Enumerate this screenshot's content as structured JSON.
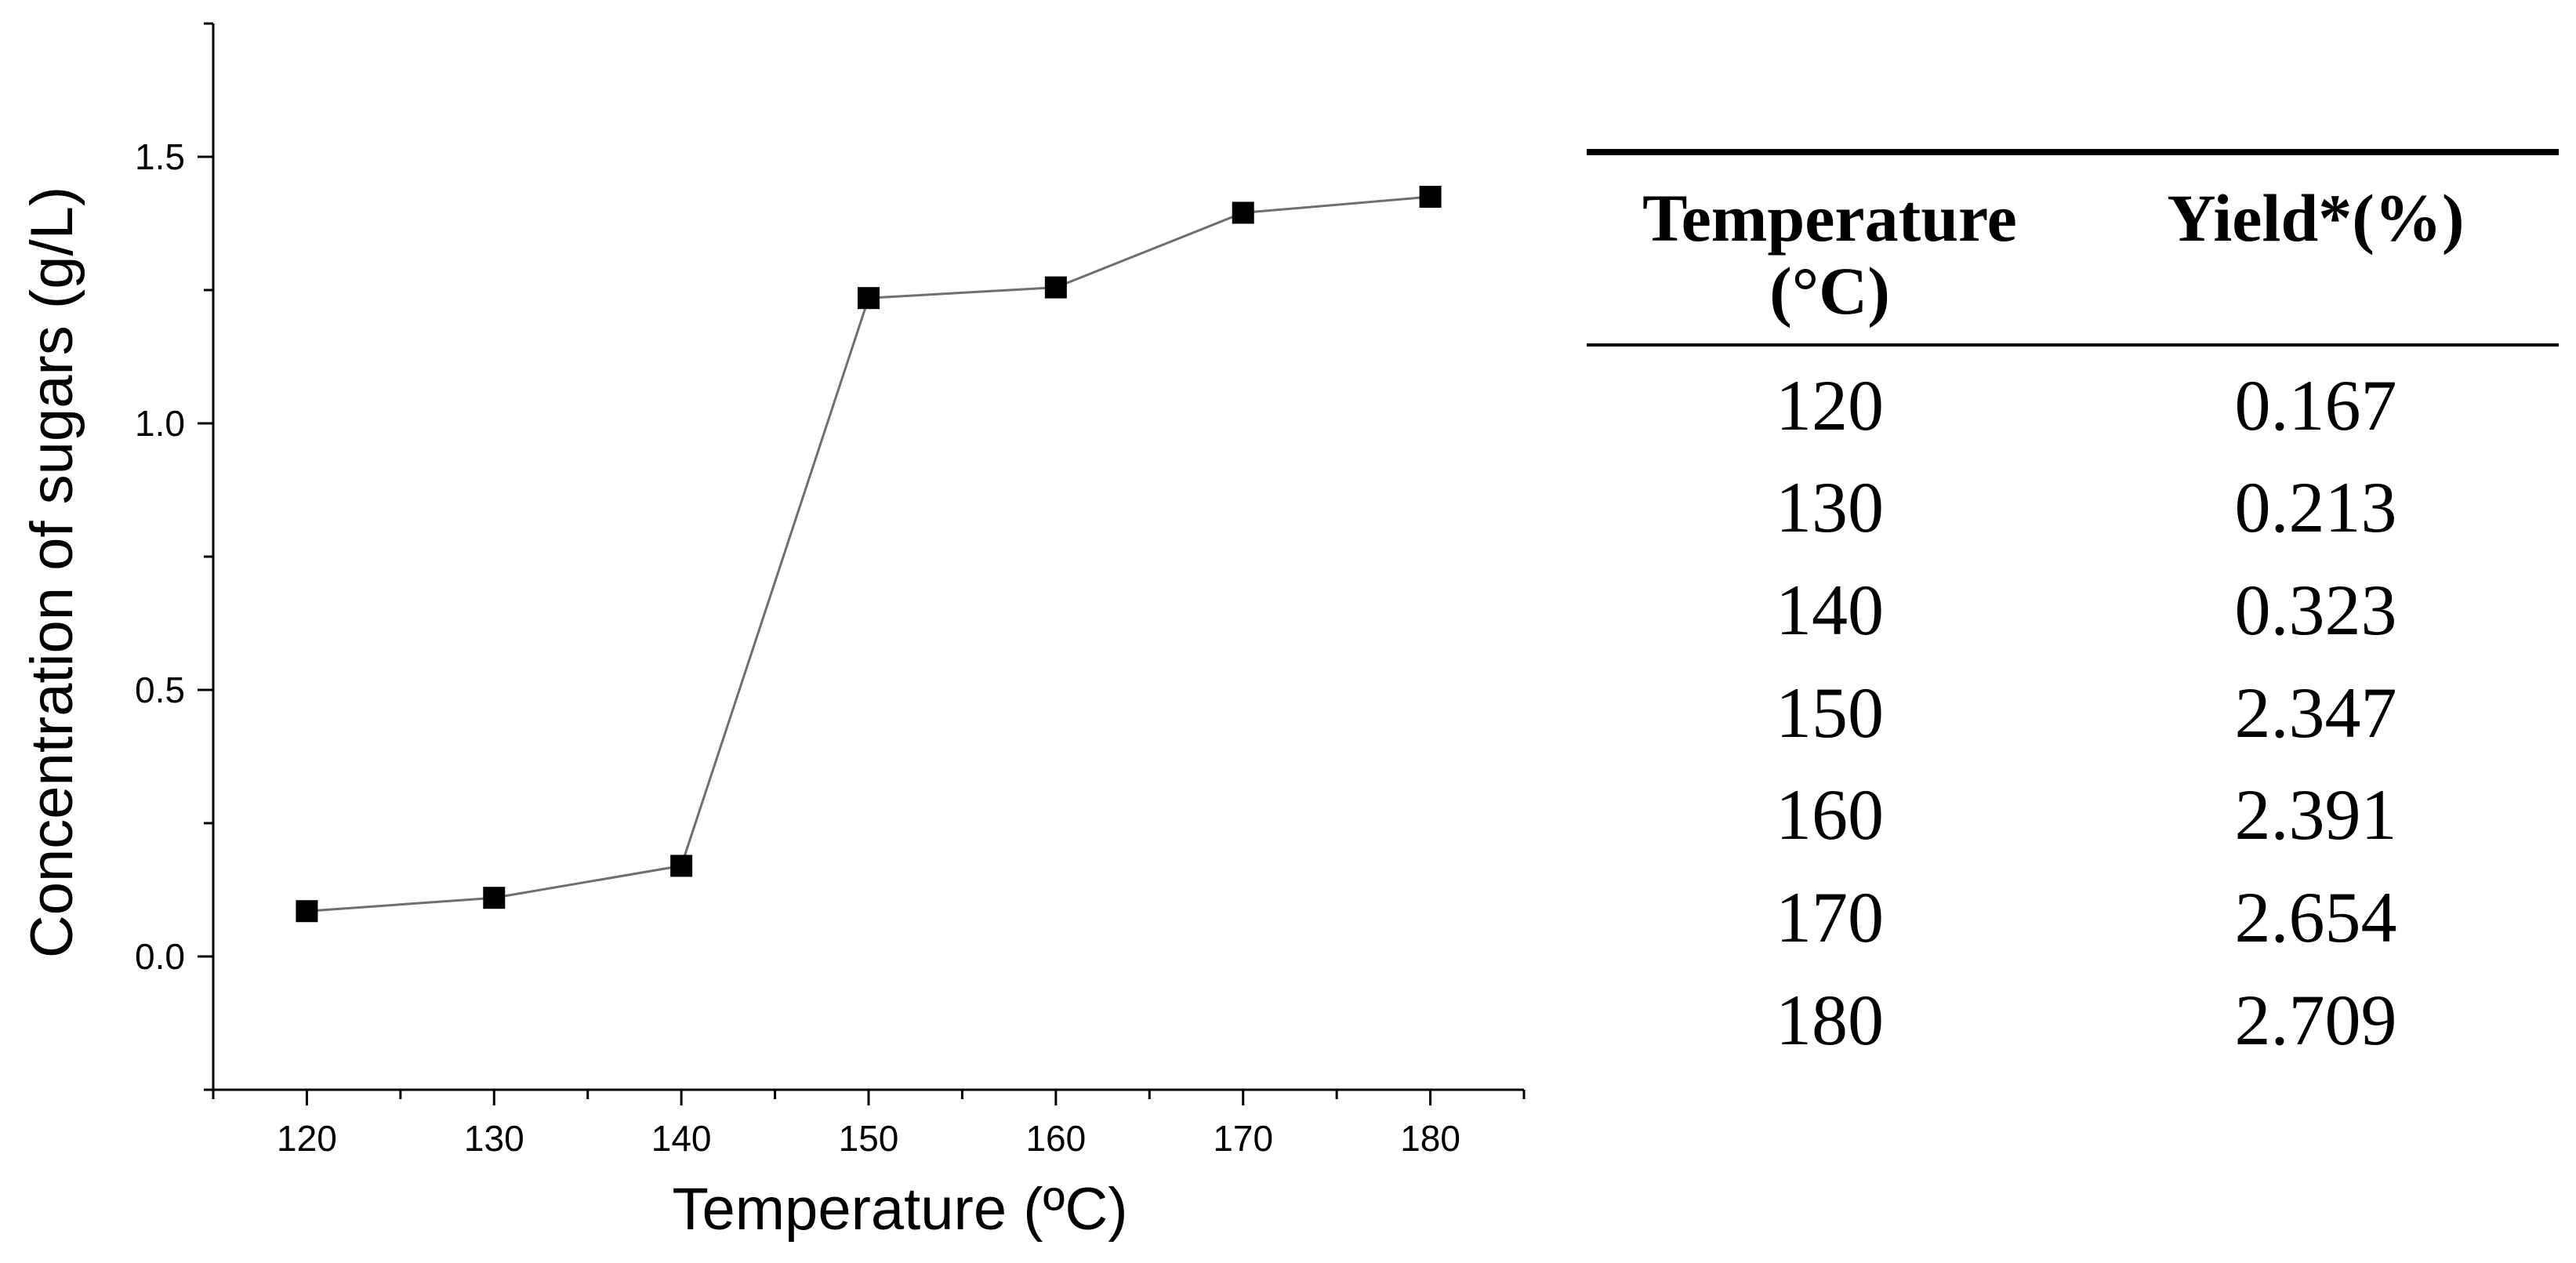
{
  "chart_data": {
    "type": "line",
    "x": [
      120,
      130,
      140,
      150,
      160,
      170,
      180
    ],
    "series": [
      {
        "name": "Concentration of sugars",
        "values": [
          0.085,
          0.11,
          0.17,
          1.235,
          1.255,
          1.395,
          1.425
        ],
        "marker": "square",
        "color": "#000000"
      }
    ],
    "title": "",
    "xlabel": "Temperature (ºC)",
    "ylabel": "Concentration of sugars (g/L)",
    "xlim": [
      115,
      185
    ],
    "ylim": [
      -0.25,
      1.75
    ],
    "xticks": [
      120,
      130,
      140,
      150,
      160,
      170,
      180
    ],
    "xtick_labels": [
      "120",
      "130",
      "140",
      "150",
      "160",
      "170",
      "180"
    ],
    "yticks": [
      0.0,
      0.5,
      1.0,
      1.5
    ],
    "ytick_labels": [
      "0.0",
      "0.5",
      "1.0",
      "1.5"
    ],
    "grid": false,
    "legend": "none"
  },
  "table": {
    "type": "table",
    "headers": [
      "Temperature (°C)",
      "Yield*(%)"
    ],
    "rows": [
      [
        "120",
        "0.167"
      ],
      [
        "130",
        "0.213"
      ],
      [
        "140",
        "0.323"
      ],
      [
        "150",
        "2.347"
      ],
      [
        "160",
        "2.391"
      ],
      [
        "170",
        "2.654"
      ],
      [
        "180",
        "2.709"
      ]
    ]
  }
}
